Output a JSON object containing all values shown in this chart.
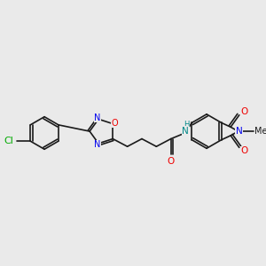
{
  "background_color": "#eaeaea",
  "bond_color": "#1a1a1a",
  "atom_colors": {
    "N": "#0000ee",
    "O": "#ee0000",
    "Cl": "#00aa00",
    "NH": "#008888",
    "C": "#1a1a1a"
  },
  "lw": 1.2,
  "font_size": 7.5
}
